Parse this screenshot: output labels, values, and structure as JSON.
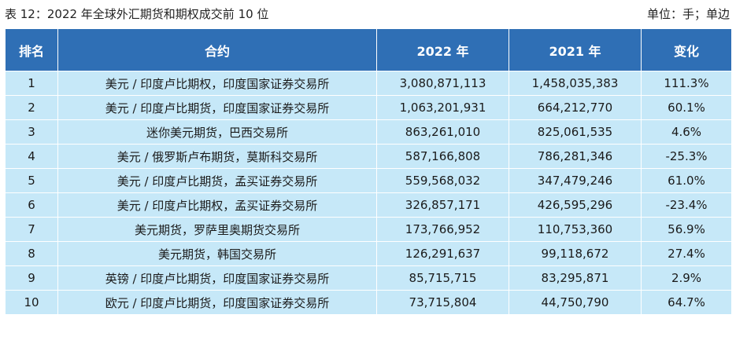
{
  "caption": {
    "title": "表 12：2022 年全球外汇期货和期权成交前 10 位",
    "unit": "单位：手；单边"
  },
  "table": {
    "headers": [
      "排名",
      "合约",
      "2022 年",
      "2021 年",
      "变化"
    ],
    "rows": [
      [
        "1",
        "美元 / 印度卢比期权，印度国家证券交易所",
        "3,080,871,113",
        "1,458,035,383",
        "111.3%"
      ],
      [
        "2",
        "美元 / 印度卢比期货，印度国家证券交易所",
        "1,063,201,931",
        "664,212,770",
        "60.1%"
      ],
      [
        "3",
        "迷你美元期货，巴西交易所",
        "863,261,010",
        "825,061,535",
        "4.6%"
      ],
      [
        "4",
        "美元 / 俄罗斯卢布期货，莫斯科交易所",
        "587,166,808",
        "786,281,346",
        "-25.3%"
      ],
      [
        "5",
        "美元 / 印度卢比期货，孟买证券交易所",
        "559,568,032",
        "347,479,246",
        "61.0%"
      ],
      [
        "6",
        "美元 / 印度卢比期权，孟买证券交易所",
        "326,857,171",
        "426,595,296",
        "-23.4%"
      ],
      [
        "7",
        "美元期货，罗萨里奥期货交易所",
        "173,766,952",
        "110,753,360",
        "56.9%"
      ],
      [
        "8",
        "美元期货，韩国交易所",
        "126,291,637",
        "99,118,672",
        "27.4%"
      ],
      [
        "9",
        "英镑 / 印度卢比期货，印度国家证券交易所",
        "85,715,715",
        "83,295,871",
        "2.9%"
      ],
      [
        "10",
        "欧元 / 印度卢比期货，印度国家证券交易所",
        "73,715,804",
        "44,750,790",
        "64.7%"
      ]
    ]
  },
  "colors": {
    "header_bg": "#2f6fb5",
    "header_text": "#ffffff",
    "row_bg": "#c6e8f8",
    "grid_line": "#ffffff"
  }
}
